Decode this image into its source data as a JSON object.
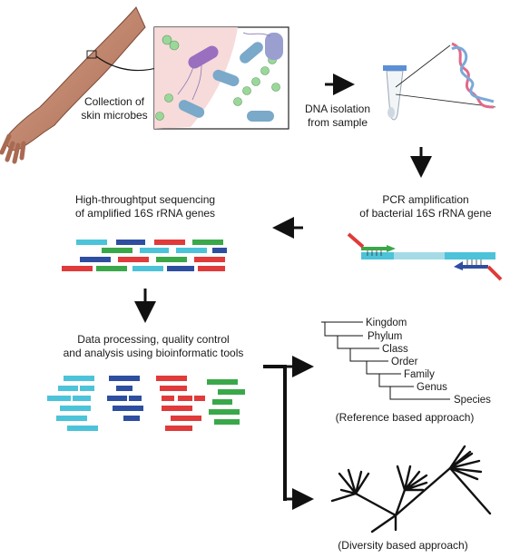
{
  "steps": {
    "collection": {
      "line1": "Collection of",
      "line2": "skin microbes"
    },
    "dna": {
      "line1": "DNA isolation",
      "line2": "from sample"
    },
    "pcr": {
      "line1": "PCR amplification",
      "line2": "of bacterial 16S rRNA gene"
    },
    "sequencing": {
      "line1": "High-throughtput sequencing",
      "line2": "of amplified 16S rRNA genes"
    },
    "processing": {
      "line1": "Data processing, quality control",
      "line2": "and analysis using bioinformatic tools"
    }
  },
  "taxonomy": {
    "ranks": [
      "Kingdom",
      "Phylum",
      "Class",
      "Order",
      "Family",
      "Genus",
      "Species"
    ],
    "caption": "(Reference based approach)"
  },
  "diversity": {
    "caption": "(Diversity based approach)"
  },
  "colors": {
    "cyan": "#4cc3d9",
    "blue": "#2e4fa0",
    "red": "#e03a3a",
    "green": "#3aa84a",
    "microbe_green": "#9bd79b",
    "microbe_blue": "#7aa9c9",
    "skin": "#c98a6e"
  }
}
